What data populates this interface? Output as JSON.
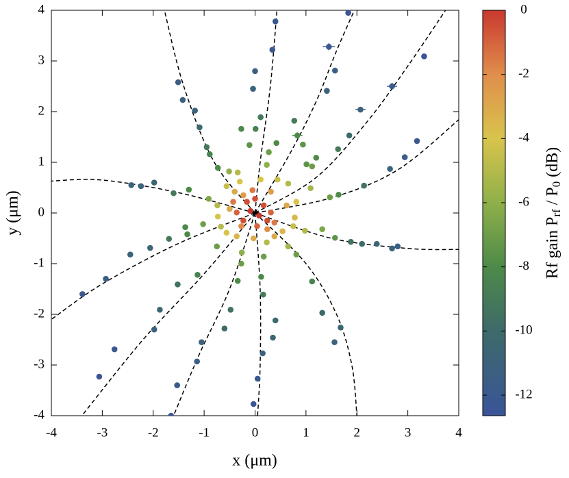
{
  "chart_data": {
    "type": "scatter",
    "x_label": "x (μm)",
    "y_label": "y (μm)",
    "colorbar_label": [
      "Rf gain P",
      "rf",
      " / P",
      "0",
      " (dB)"
    ],
    "xlim": [
      -4,
      4
    ],
    "ylim": [
      -4,
      4
    ],
    "xticks": [
      -4,
      -3,
      -2,
      -1,
      0,
      1,
      2,
      3,
      4
    ],
    "yticks": [
      -4,
      -3,
      -2,
      -1,
      0,
      1,
      2,
      3,
      4
    ],
    "clim": [
      -12.64,
      0
    ],
    "cticks": [
      0,
      -2,
      -4,
      -6,
      -8,
      -10,
      -12
    ],
    "colormap": [
      {
        "value": 0,
        "color": "#c9392f"
      },
      {
        "value": -2,
        "color": "#e08e4c"
      },
      {
        "value": -4,
        "color": "#d8c44c"
      },
      {
        "value": -6,
        "color": "#8fb04a"
      },
      {
        "value": -8,
        "color": "#4d8a48"
      },
      {
        "value": -10,
        "color": "#3d6a6a"
      },
      {
        "value": -12.64,
        "color": "#3a5499"
      }
    ],
    "points": {
      "x": [
        0.4,
        0.34,
        0,
        -0.04,
        1.83,
        1.57,
        1.41,
        3.32,
        3.18,
        2.94,
        2.65,
        -1.51,
        -1.42,
        -1.18,
        -1.09,
        -1.98,
        -2.43,
        -2.24,
        -3.39,
        -2.93,
        -2.45,
        -2.06,
        -3.06,
        -2.76,
        -1.98,
        -1.87,
        -1.65,
        -1.53,
        -1.14,
        -1.05,
        -0.03,
        0.05,
        0.15,
        0.35,
        0.4,
        1.56,
        1.68,
        1.32,
        2.8,
        2.69,
        2.39,
        2.1,
        1.88,
        0.11,
        0.01,
        -0.27,
        -0.95,
        -0.89,
        -0.73,
        -0.51,
        -0.34,
        -0.11,
        0.23,
        0.27,
        0.42,
        0.77,
        0.94,
        1.12,
        1.2,
        1.63,
        1.85,
        1.09,
        1.47,
        1.64,
        2.14,
        1.32,
        1.57,
        0.98,
        0.75,
        0.81,
        1.12,
        0.65,
        0.23,
        0.17,
        0.12,
        0.16,
        -0.26,
        -0.27,
        -0.34,
        -0.48,
        -0.6,
        -0.75,
        -1.13,
        -1.52,
        -1.37,
        -1.69,
        -1.33,
        -1.02,
        -1.3,
        -1.6,
        -0.91,
        -0.74,
        -0.67,
        1.01,
        -0.56,
        -0.3,
        0.11,
        0.44,
        0.65,
        0.81,
        0.62,
        0.78,
        0.54,
        0.38,
        -0.03,
        -0.36,
        -0.56,
        -0.73,
        -0.5,
        -0.23,
        0.31,
        0.24,
        -0.27,
        -0.4,
        -0.16,
        0,
        0.17,
        0.31,
        0.24,
        0.04,
        -0.23,
        -0.36,
        -0.09,
        0.08,
        0.38,
        -0.43,
        -0.05
      ],
      "y": [
        3.78,
        3.22,
        2.8,
        2.45,
        3.95,
        2.81,
        2.41,
        3.09,
        1.42,
        1.1,
        0.87,
        2.58,
        2.23,
        2.02,
        1.69,
        0.6,
        0.55,
        0.53,
        -1.6,
        -1.3,
        -0.82,
        -0.69,
        -3.23,
        -2.69,
        -2.3,
        -1.91,
        -4,
        -3.4,
        -2.93,
        -2.55,
        -3.77,
        -3.27,
        -2.77,
        -2.46,
        -2.12,
        -2.55,
        -2.26,
        -1.97,
        -0.66,
        -0.7,
        -0.61,
        -0.61,
        -0.57,
        1.89,
        1.66,
        1.66,
        1.3,
        1.16,
        0.89,
        0.82,
        0.8,
        1.34,
        0.95,
        1.2,
        1.38,
        1.82,
        1.35,
        0.92,
        1.09,
        1.26,
        1.53,
        0.49,
        0.31,
        0.36,
        0.54,
        -0.32,
        -0.49,
        -0.35,
        -0.26,
        -0.82,
        -1.35,
        -0.66,
        -0.58,
        -0.86,
        -1.26,
        -1.61,
        -0.78,
        -1,
        -1.34,
        -1.91,
        -2.28,
        -0.66,
        -1.22,
        -1.41,
        -0.28,
        -0.51,
        -0.42,
        -0.22,
        0.46,
        0.39,
        0.28,
        0.15,
        -0.27,
        0.96,
        0.53,
        0.62,
        0.66,
        0.66,
        0.58,
        0.22,
        0.15,
        -0.09,
        -0.36,
        -0.46,
        -0.5,
        -0.46,
        -0.39,
        -0.07,
        0.08,
        0.35,
        0.42,
        -0.32,
        -0.26,
        0.42,
        0.22,
        0.28,
        0.15,
        0.01,
        -0.15,
        -0.26,
        -0.15,
        0.01,
        0.04,
        -0.05,
        -0.19,
        0.22,
        0.45
      ],
      "c": [
        -12,
        -12,
        -11.5,
        -11,
        -12.5,
        -11.5,
        -11,
        -12.5,
        -12,
        -11.5,
        -11,
        -11.5,
        -11,
        -11,
        -10,
        -10.5,
        -11,
        -11,
        -12,
        -11.5,
        -11,
        -10.5,
        -12.5,
        -12,
        -11,
        -10.5,
        -12.5,
        -12,
        -11.5,
        -11,
        -12.5,
        -12,
        -11,
        -10.5,
        -10,
        -11,
        -10.5,
        -10,
        -11.5,
        -11,
        -10.5,
        -10,
        -9.5,
        -9,
        -8.5,
        -8,
        -9,
        -8.5,
        -8,
        -6,
        -5,
        -7.5,
        -6,
        -7,
        -8,
        -9,
        -7.5,
        -7,
        -8,
        -9,
        -10,
        -5.5,
        -7,
        -8,
        -9.5,
        -6.5,
        -7.5,
        -5,
        -4.5,
        -7,
        -8.5,
        -5.5,
        -5,
        -7,
        -8,
        -9,
        -6,
        -7,
        -8,
        -9.5,
        -10,
        -7,
        -8.5,
        -9.5,
        -8,
        -9,
        -8,
        -7,
        -8,
        -9,
        -6.5,
        -5,
        -5,
        -7.5,
        -4.5,
        -4,
        -4,
        -4.5,
        -5,
        -4,
        -3,
        -3.5,
        -3.5,
        -3,
        -3,
        -3.5,
        -4,
        -4,
        -3,
        -2.5,
        -2.5,
        -2,
        -2,
        -3,
        -0.5,
        -0.5,
        -0.5,
        -1,
        -0.5,
        -1,
        -0.5,
        -1,
        0,
        0,
        -1.5,
        -1.5,
        -1.5
      ]
    },
    "errorbar_points": {
      "x": [
        1.45,
        2.07,
        2.69,
        0.83
      ],
      "y": [
        3.28,
        2.04,
        2.5,
        1.53
      ],
      "c": [
        -12,
        -11,
        -12,
        -8
      ],
      "xerr": [
        0.12,
        0.1,
        0.1,
        0.1
      ],
      "yerr": [
        0.07,
        0.05,
        0.07,
        0.06
      ]
    },
    "fit_curves": [
      {
        "x": [
          0,
          0.1,
          0.3,
          0.43
        ],
        "y": [
          0,
          1,
          2.5,
          4
        ]
      },
      {
        "x": [
          0,
          0.7,
          1.2,
          1.6,
          1.95
        ],
        "y": [
          0,
          1.2,
          2.2,
          3.2,
          4
        ]
      },
      {
        "x": [
          0,
          1.2,
          2.2,
          3,
          3.74
        ],
        "y": [
          0,
          0.7,
          1.8,
          2.9,
          4
        ]
      },
      {
        "x": [
          0,
          1.5,
          2.8,
          4
        ],
        "y": [
          0,
          0.3,
          0.85,
          1.84
        ]
      },
      {
        "x": [
          0,
          1.5,
          3,
          4
        ],
        "y": [
          0,
          -0.5,
          -0.7,
          -0.72
        ]
      },
      {
        "x": [
          0,
          1,
          1.6,
          1.9,
          2
        ],
        "y": [
          0,
          -1,
          -2,
          -3,
          -4
        ]
      },
      {
        "x": [
          0,
          0.1,
          0.1,
          0.05
        ],
        "y": [
          0,
          -1.5,
          -3,
          -4
        ]
      },
      {
        "x": [
          0,
          -0.5,
          -1.1,
          -1.6
        ],
        "y": [
          0,
          -1.5,
          -2.8,
          -4
        ]
      },
      {
        "x": [
          0,
          -1,
          -2.2,
          -3.4
        ],
        "y": [
          0,
          -1.2,
          -2.5,
          -4
        ]
      },
      {
        "x": [
          0,
          -1.5,
          -3,
          -4
        ],
        "y": [
          0,
          -0.6,
          -1.4,
          -2.1
        ]
      },
      {
        "x": [
          0,
          -1.5,
          -3,
          -4
        ],
        "y": [
          0,
          0.4,
          0.65,
          0.63
        ]
      },
      {
        "x": [
          0,
          -0.8,
          -1.4,
          -1.78
        ],
        "y": [
          0,
          1,
          2.5,
          4
        ]
      }
    ]
  }
}
